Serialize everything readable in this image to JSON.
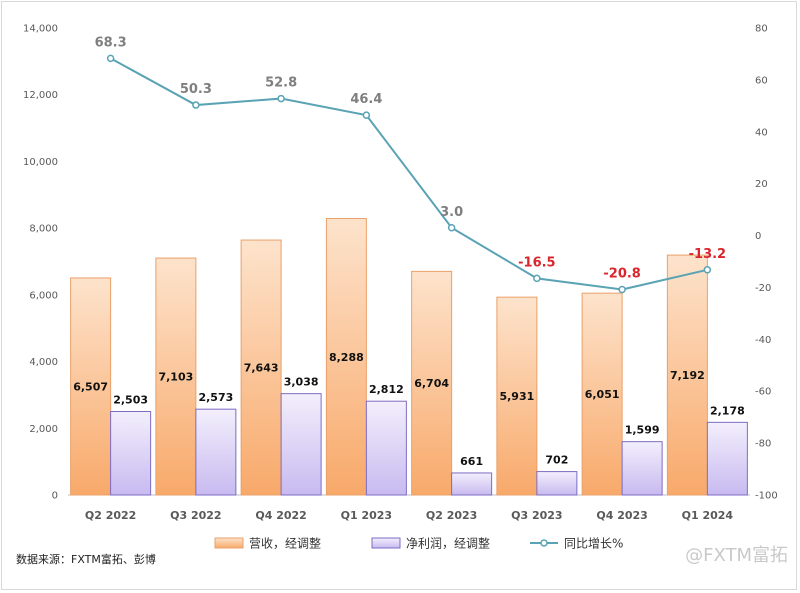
{
  "chart_data": {
    "type": "bar+line",
    "categories": [
      "Q2 2022",
      "Q3 2022",
      "Q4 2022",
      "Q1 2023",
      "Q2 2023",
      "Q3 2023",
      "Q4 2023",
      "Q1 2024"
    ],
    "series": [
      {
        "name": "营收，经调整",
        "type": "bar",
        "axis": "left",
        "values": [
          6507,
          7103,
          7643,
          8288,
          6704,
          5931,
          6051,
          7192
        ],
        "labels": [
          "6,507",
          "7,103",
          "7,643",
          "8,288",
          "6,704",
          "5,931",
          "6,051",
          "7,192"
        ]
      },
      {
        "name": "净利润，经调整",
        "type": "bar",
        "axis": "left",
        "values": [
          2503,
          2573,
          3038,
          2812,
          661,
          702,
          1599,
          2178
        ],
        "labels": [
          "2,503",
          "2,573",
          "3,038",
          "2,812",
          "661",
          "702",
          "1,599",
          "2,178"
        ]
      },
      {
        "name": "同比增长%",
        "type": "line",
        "axis": "right",
        "values": [
          68.3,
          50.3,
          52.8,
          46.4,
          3.0,
          -16.5,
          -20.8,
          -13.2
        ],
        "labels": [
          "68.3",
          "50.3",
          "52.8",
          "46.4",
          "3.0",
          "-16.5",
          "-20.8",
          "-13.2"
        ]
      }
    ],
    "left_axis": {
      "ylim": [
        0,
        14000
      ],
      "ticks": [
        "0",
        "2,000",
        "4,000",
        "6,000",
        "8,000",
        "10,000",
        "12,000",
        "14,000"
      ]
    },
    "right_axis": {
      "ylim": [
        -100,
        80
      ],
      "ticks": [
        "-100",
        "-80",
        "-60",
        "-40",
        "-20",
        "0",
        "20",
        "40",
        "60",
        "80"
      ]
    },
    "grid": false,
    "legend_position": "bottom",
    "colors": {
      "revenue_fill_top": "#fde3cc",
      "revenue_fill_bottom": "#f8a96a",
      "revenue_stroke": "#e9a06a",
      "profit_fill_top": "#f3effc",
      "profit_fill_bottom": "#c8baf0",
      "profit_stroke": "#7e6cc4",
      "line": "#5aa3b5",
      "label_positive": "#7f7f7f",
      "label_negative": "#d9262c"
    }
  },
  "source_text": "数据来源：FXTM富拓、彭博",
  "watermark_text": "@FXTM富拓"
}
